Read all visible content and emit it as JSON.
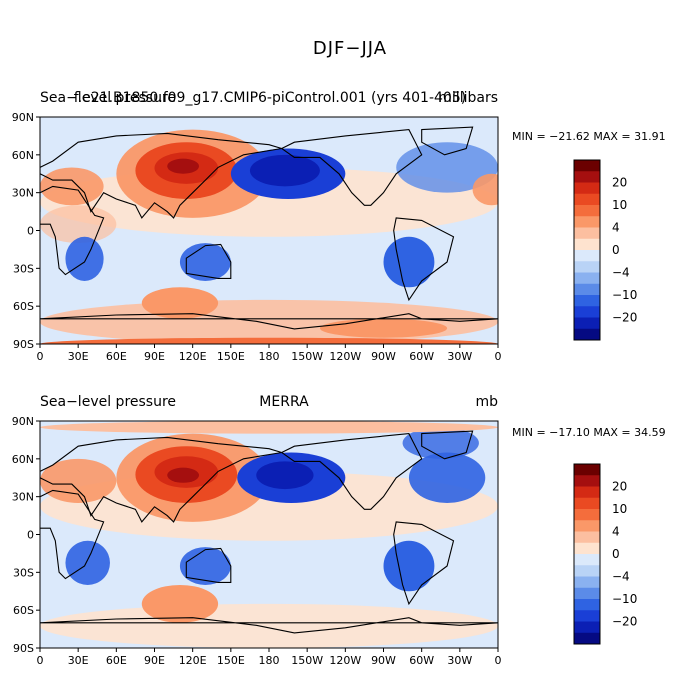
{
  "page_title": "DJF−JJA",
  "lat_labels": [
    "90N",
    "60N",
    "30N",
    "0",
    "30S",
    "60S",
    "90S"
  ],
  "lon_labels": [
    "0",
    "30E",
    "60E",
    "90E",
    "120E",
    "150E",
    "180",
    "150W",
    "120W",
    "90W",
    "60W",
    "30W",
    "0"
  ],
  "colorbar_labels": [
    "20",
    "10",
    "4",
    "0",
    "−4",
    "−10",
    "−20"
  ],
  "colorbar_colors": [
    "#6b0000",
    "#a50f0f",
    "#d42a14",
    "#ea4a22",
    "#f46d3c",
    "#fa9868",
    "#fcbfa0",
    "#fee3cf",
    "#dbe9fb",
    "#b9d3f6",
    "#8ab1f0",
    "#5b8be8",
    "#2f63e2",
    "#1a3fd6",
    "#0b1fb4",
    "#050a82"
  ],
  "panels": [
    {
      "id": "model",
      "left_title": "Sea−level pressure",
      "center_title": "f.e21.B1850.f09_g17.CMIP6-piControl.001 (yrs 401-405)",
      "right_title": "millibars",
      "min_max": "MIN = −21.62  MAX =  31.91"
    },
    {
      "id": "obs",
      "left_title": "Sea−level pressure",
      "center_title": "MERRA",
      "right_title": "mb",
      "min_max": "MIN = −17.10  MAX =  34.59"
    }
  ],
  "chart_data": [
    {
      "type": "heatmap",
      "variable": "Sea-level pressure (DJF minus JJA)",
      "dataset": "f.e21.B1850.f09_g17.CMIP6-piControl.001 (yrs 401-405)",
      "units": "millibars",
      "min": -21.62,
      "max": 31.91,
      "lon_range": [
        0,
        360
      ],
      "lat_range": [
        -90,
        90
      ],
      "contour_levels": [
        -20,
        -10,
        -4,
        0,
        4,
        10,
        20
      ]
    },
    {
      "type": "heatmap",
      "variable": "Sea-level pressure (DJF minus JJA)",
      "dataset": "MERRA",
      "units": "mb",
      "min": -17.1,
      "max": 34.59,
      "lon_range": [
        0,
        360
      ],
      "lat_range": [
        -90,
        90
      ],
      "contour_levels": [
        -20,
        -10,
        -4,
        0,
        4,
        10,
        20
      ]
    }
  ]
}
